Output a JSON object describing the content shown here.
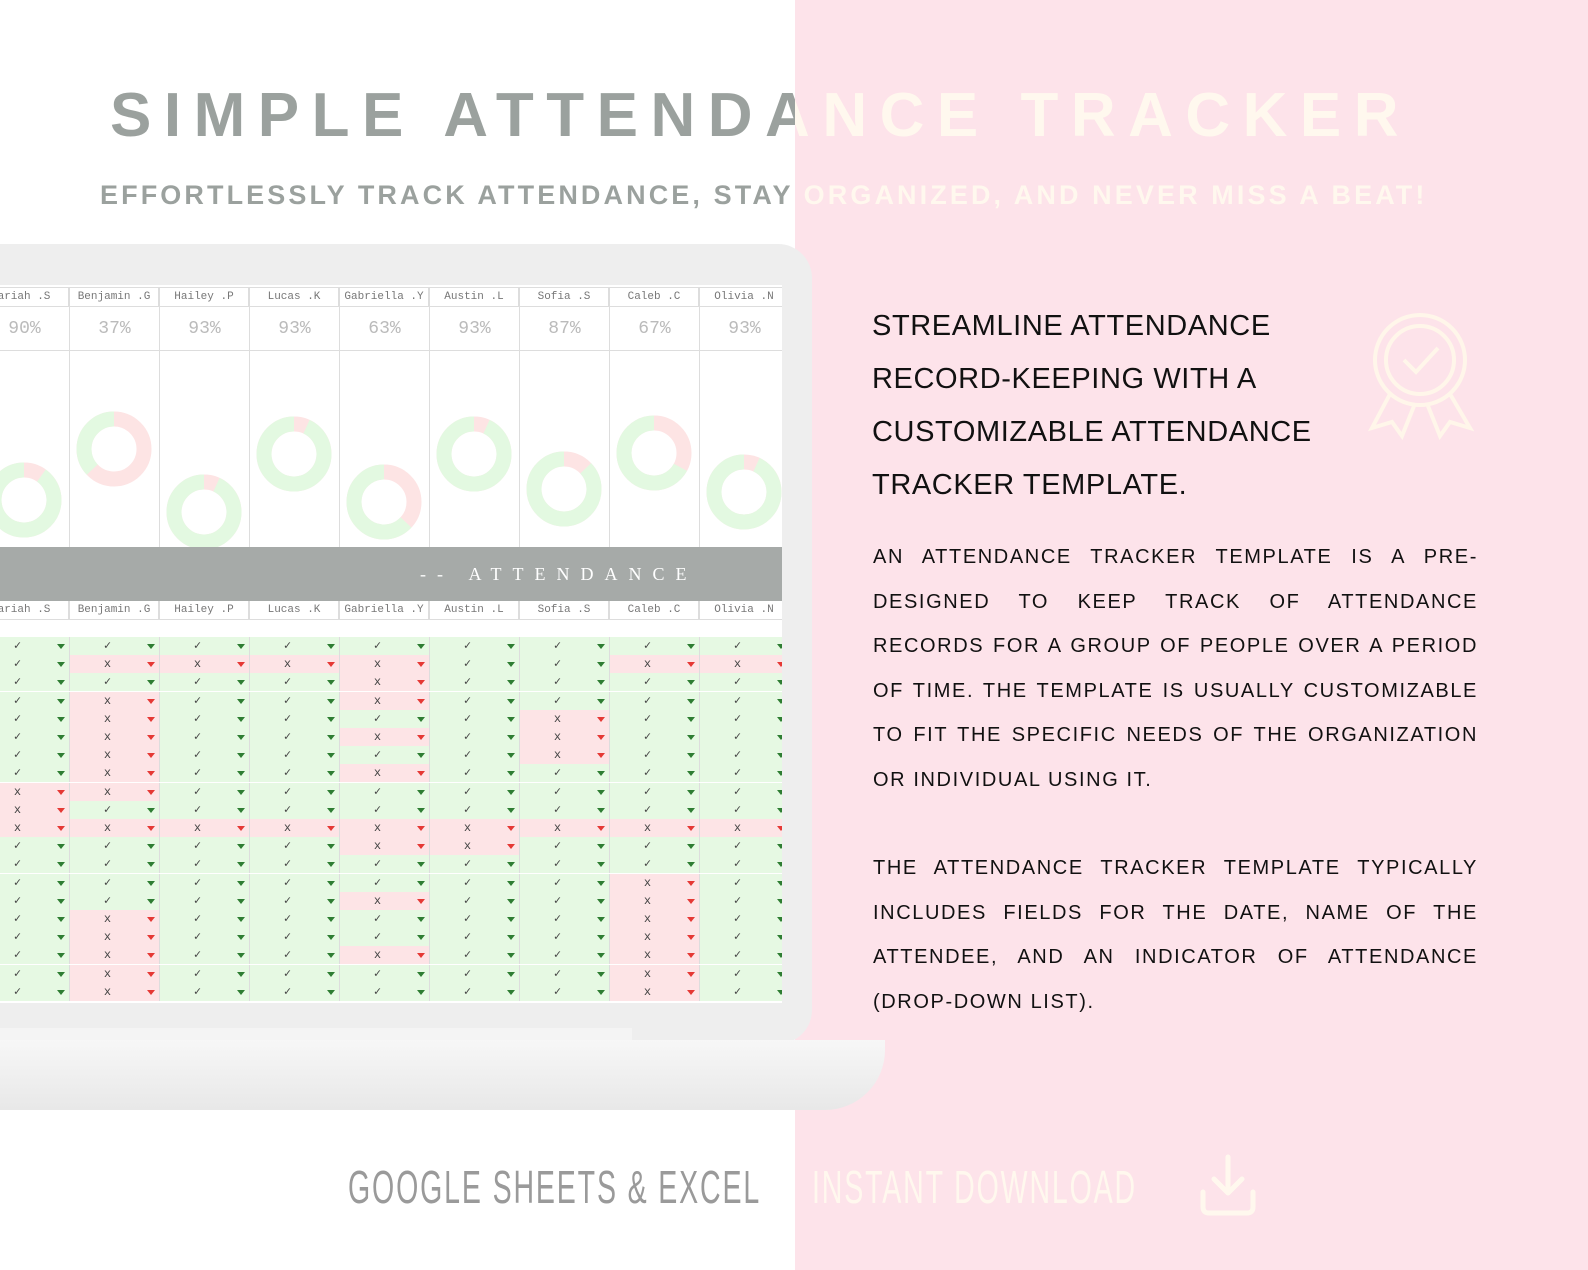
{
  "header": {
    "title": "SIMPLE ATTENDANCE TRACKER",
    "subtitle": "EFFORTLESSLY TRACK ATTENDANCE, STAY ORGANIZED, AND NEVER MISS A BEAT!"
  },
  "sheet": {
    "people": [
      {
        "name": "ariah .S",
        "rate": 90,
        "rate_label": "90%"
      },
      {
        "name": "Benjamin .G",
        "rate": 37,
        "rate_label": "37%"
      },
      {
        "name": "Hailey .P",
        "rate": 93,
        "rate_label": "93%"
      },
      {
        "name": "Lucas .K",
        "rate": 93,
        "rate_label": "93%"
      },
      {
        "name": "Gabriella .Y",
        "rate": 63,
        "rate_label": "63%"
      },
      {
        "name": "Austin .L",
        "rate": 93,
        "rate_label": "93%"
      },
      {
        "name": "Sofia .S",
        "rate": 87,
        "rate_label": "87%"
      },
      {
        "name": "Caleb .C",
        "rate": 67,
        "rate_label": "67%"
      },
      {
        "name": "Olivia .N",
        "rate": 93,
        "rate_label": "93%"
      }
    ],
    "band_title": "-- ATTENDANCE",
    "rows": [
      [
        "✓",
        "✓",
        "✓",
        "✓",
        "✓",
        "✓",
        "✓",
        "✓",
        "✓"
      ],
      [
        "✓",
        "x",
        "x",
        "x",
        "x",
        "✓",
        "✓",
        "x",
        "x"
      ],
      [
        "✓",
        "✓",
        "✓",
        "✓",
        "x",
        "✓",
        "✓",
        "✓",
        "✓"
      ],
      [
        "✓",
        "x",
        "✓",
        "✓",
        "x",
        "✓",
        "✓",
        "✓",
        "✓"
      ],
      [
        "✓",
        "x",
        "✓",
        "✓",
        "✓",
        "✓",
        "x",
        "✓",
        "✓"
      ],
      [
        "✓",
        "x",
        "✓",
        "✓",
        "x",
        "✓",
        "x",
        "✓",
        "✓"
      ],
      [
        "✓",
        "x",
        "✓",
        "✓",
        "✓",
        "✓",
        "x",
        "✓",
        "✓"
      ],
      [
        "✓",
        "x",
        "✓",
        "✓",
        "x",
        "✓",
        "✓",
        "✓",
        "✓"
      ],
      [
        "x",
        "x",
        "✓",
        "✓",
        "✓",
        "✓",
        "✓",
        "✓",
        "✓"
      ],
      [
        "x",
        "✓",
        "✓",
        "✓",
        "✓",
        "✓",
        "✓",
        "✓",
        "✓"
      ],
      [
        "x",
        "x",
        "x",
        "x",
        "x",
        "x",
        "x",
        "x",
        "x"
      ],
      [
        "✓",
        "✓",
        "✓",
        "✓",
        "x",
        "x",
        "✓",
        "✓",
        "✓"
      ],
      [
        "✓",
        "✓",
        "✓",
        "✓",
        "✓",
        "✓",
        "✓",
        "✓",
        "✓"
      ],
      [
        "✓",
        "✓",
        "✓",
        "✓",
        "✓",
        "✓",
        "✓",
        "x",
        "✓"
      ],
      [
        "✓",
        "✓",
        "✓",
        "✓",
        "x",
        "✓",
        "✓",
        "x",
        "✓"
      ],
      [
        "✓",
        "x",
        "✓",
        "✓",
        "✓",
        "✓",
        "✓",
        "x",
        "✓"
      ],
      [
        "✓",
        "x",
        "✓",
        "✓",
        "✓",
        "✓",
        "✓",
        "x",
        "✓"
      ],
      [
        "✓",
        "x",
        "✓",
        "✓",
        "x",
        "✓",
        "✓",
        "x",
        "✓"
      ],
      [
        "✓",
        "x",
        "✓",
        "✓",
        "✓",
        "✓",
        "✓",
        "x",
        "✓"
      ],
      [
        "✓",
        "x",
        "✓",
        "✓",
        "✓",
        "✓",
        "✓",
        "x",
        "✓"
      ]
    ]
  },
  "description": {
    "heading_lines": [
      "STREAMLINE ATTENDANCE",
      "RECORD-KEEPING WITH A",
      "CUSTOMIZABLE ATTENDANCE",
      "TRACKER TEMPLATE."
    ],
    "paragraphs": [
      "AN ATTENDANCE TRACKER TEMPLATE IS A PRE-DESIGNED TO KEEP TRACK OF ATTENDANCE RECORDS FOR A GROUP OF PEOPLE OVER A PERIOD OF TIME. THE TEMPLATE IS USUALLY CUSTOMIZABLE TO FIT THE SPECIFIC NEEDS OF THE ORGANIZATION OR INDIVIDUAL USING IT.",
      "THE ATTENDANCE TRACKER TEMPLATE TYPICALLY INCLUDES FIELDS FOR THE DATE, NAME OF THE ATTENDEE, AND AN INDICATOR OF ATTENDANCE (DROP-DOWN LIST)."
    ]
  },
  "footer": {
    "platforms": "GOOGLE SHEETS & EXCEL",
    "download": "INSTANT DOWNLOAD"
  }
}
